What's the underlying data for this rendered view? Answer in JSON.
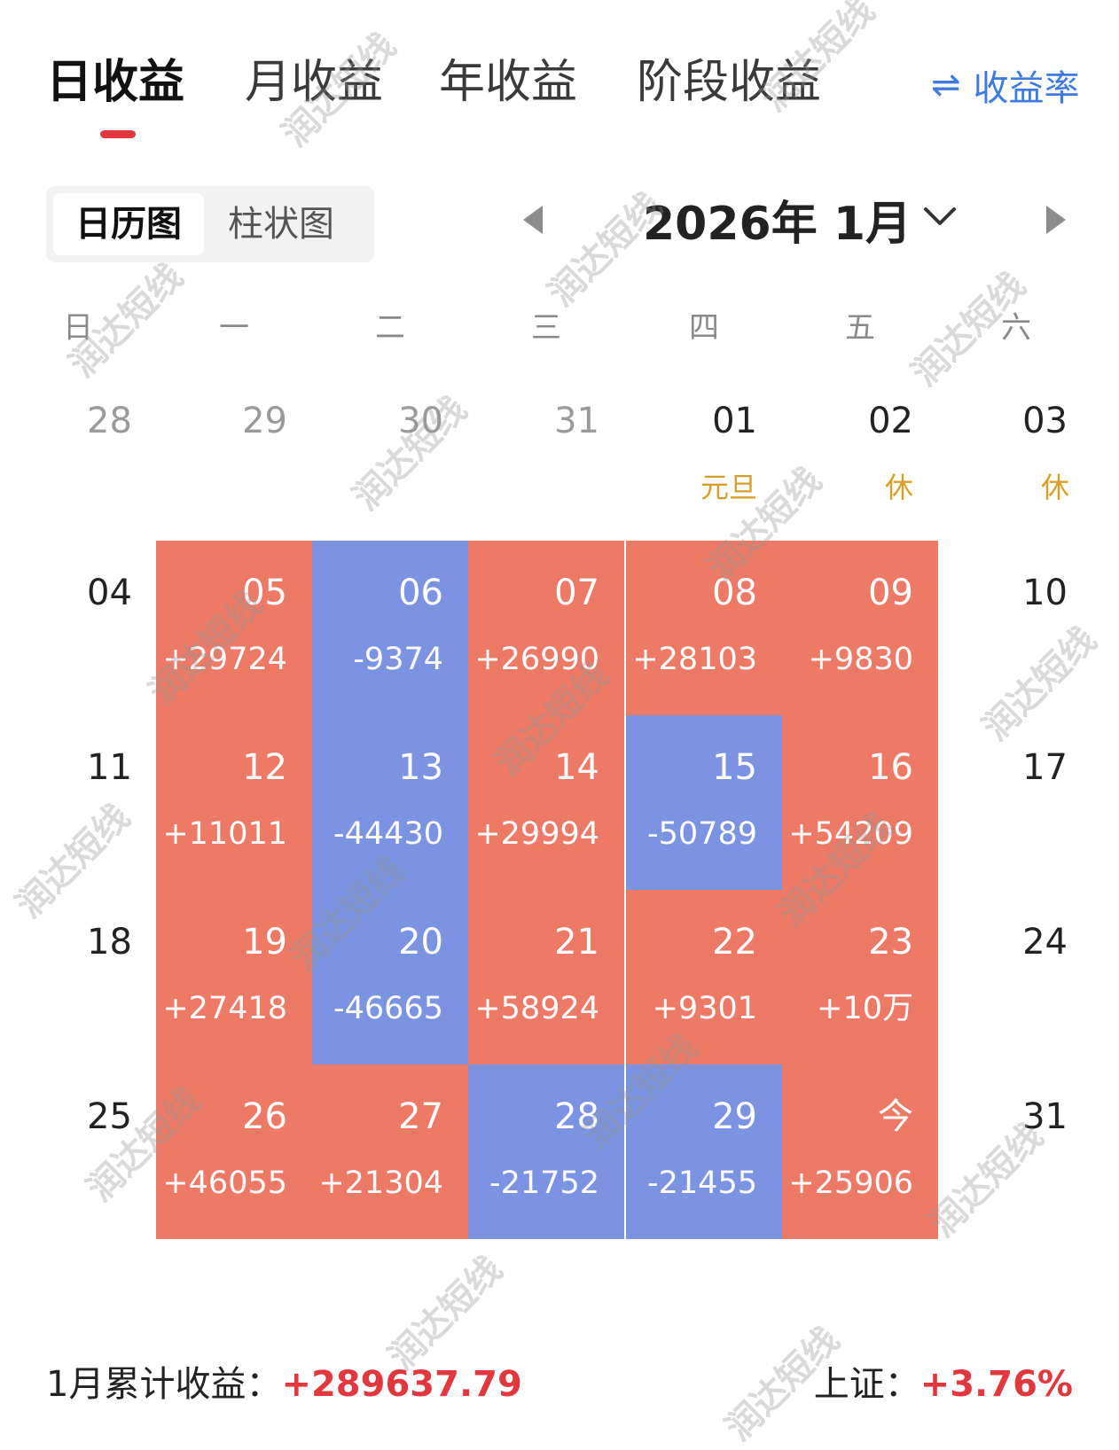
{
  "tabs": [
    {
      "label": "日收益",
      "active": true
    },
    {
      "label": "月收益",
      "active": false
    },
    {
      "label": "年收益",
      "active": false
    },
    {
      "label": "阶段收益",
      "active": false
    }
  ],
  "rate_toggle": {
    "icon": "⇌",
    "label": "收益率"
  },
  "view_switch": {
    "calendar": "日历图",
    "bar": "柱状图"
  },
  "month_title": "2026年 1月",
  "weekdays": [
    "日",
    "一",
    "二",
    "三",
    "四",
    "五",
    "六"
  ],
  "colors": {
    "gain": "#ec7a66",
    "loss": "#7b93e0",
    "holiday": "#d4a02a",
    "accent": "#e0383e",
    "link": "#3e7be0"
  },
  "weeks": [
    [
      {
        "day": "28",
        "muted": true
      },
      {
        "day": "29",
        "muted": true
      },
      {
        "day": "30",
        "muted": true
      },
      {
        "day": "31",
        "muted": true
      },
      {
        "day": "01",
        "holiday": "元旦"
      },
      {
        "day": "02",
        "holiday": "休"
      },
      {
        "day": "03",
        "holiday": "休"
      }
    ],
    [
      {
        "day": "04"
      },
      {
        "day": "05",
        "profit": "+29724",
        "kind": "gain"
      },
      {
        "day": "06",
        "profit": "-9374",
        "kind": "loss"
      },
      {
        "day": "07",
        "profit": "+26990",
        "kind": "gain"
      },
      {
        "day": "08",
        "profit": "+28103",
        "kind": "gain"
      },
      {
        "day": "09",
        "profit": "+9830",
        "kind": "gain"
      },
      {
        "day": "10"
      }
    ],
    [
      {
        "day": "11"
      },
      {
        "day": "12",
        "profit": "+11011",
        "kind": "gain"
      },
      {
        "day": "13",
        "profit": "-44430",
        "kind": "loss"
      },
      {
        "day": "14",
        "profit": "+29994",
        "kind": "gain"
      },
      {
        "day": "15",
        "profit": "-50789",
        "kind": "loss"
      },
      {
        "day": "16",
        "profit": "+54209",
        "kind": "gain"
      },
      {
        "day": "17"
      }
    ],
    [
      {
        "day": "18"
      },
      {
        "day": "19",
        "profit": "+27418",
        "kind": "gain"
      },
      {
        "day": "20",
        "profit": "-46665",
        "kind": "loss"
      },
      {
        "day": "21",
        "profit": "+58924",
        "kind": "gain"
      },
      {
        "day": "22",
        "profit": "+9301",
        "kind": "gain"
      },
      {
        "day": "23",
        "profit": "+10万",
        "kind": "gain"
      },
      {
        "day": "24"
      }
    ],
    [
      {
        "day": "25"
      },
      {
        "day": "26",
        "profit": "+46055",
        "kind": "gain"
      },
      {
        "day": "27",
        "profit": "+21304",
        "kind": "gain"
      },
      {
        "day": "28",
        "profit": "-21752",
        "kind": "loss"
      },
      {
        "day": "29",
        "profit": "-21455",
        "kind": "loss"
      },
      {
        "day": "今",
        "profit": "+25906",
        "kind": "gain"
      },
      {
        "day": "31"
      }
    ]
  ],
  "footer": {
    "cum_label": "1月累计收益：",
    "cum_value": "+289637.79",
    "index_label": "上证：",
    "index_value": "+3.76%"
  },
  "watermark": "润达短线"
}
